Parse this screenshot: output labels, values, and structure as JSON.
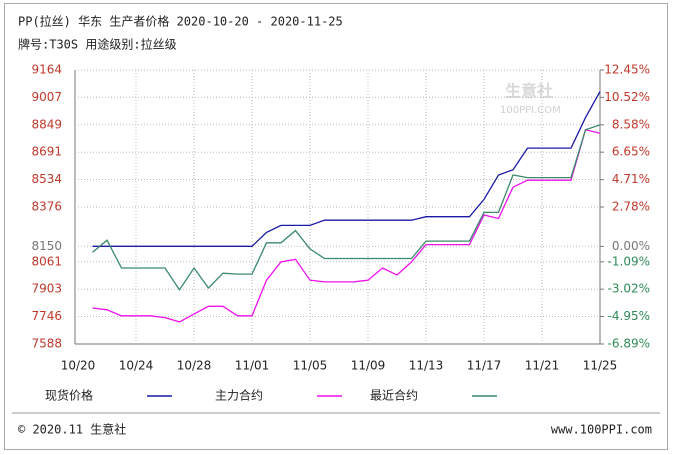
{
  "chart_data": {
    "type": "line",
    "title": "PP(拉丝) 华东 生产者价格 2020-10-20 - 2020-11-25",
    "subtitle": "牌号:T30S 用途级别:拉丝级",
    "watermark": "生意社",
    "watermark_url": "100PPI.COM",
    "footer_left": "© 2020.11 生意社",
    "footer_right": "www.100PPI.com",
    "categories": [
      "10/20",
      null,
      null,
      null,
      "10/24",
      null,
      null,
      null,
      "10/28",
      null,
      null,
      null,
      "11/01",
      null,
      null,
      null,
      "11/05",
      null,
      null,
      null,
      "11/09",
      null,
      null,
      null,
      "11/13",
      null,
      null,
      null,
      "11/17",
      null,
      null,
      null,
      "11/21",
      null,
      null,
      null,
      "11/25"
    ],
    "series": [
      {
        "name": "现货价格",
        "color": "#1a1aa6",
        "values": [
          null,
          8150,
          8150,
          8150,
          8150,
          8150,
          8150,
          8150,
          8150,
          8150,
          8150,
          8150,
          8150,
          8230,
          8270,
          8270,
          8270,
          8300,
          8300,
          8300,
          8300,
          8300,
          8300,
          8300,
          8320,
          8320,
          8320,
          8320,
          8420,
          8560,
          8590,
          8715,
          8715,
          8715,
          8715,
          8890,
          9040
        ]
      },
      {
        "name": "主力合约",
        "color": "#ee11ee",
        "values": [
          null,
          7795,
          7785,
          7750,
          7750,
          7750,
          7740,
          7715,
          7760,
          7805,
          7805,
          7750,
          7750,
          7955,
          8060,
          8075,
          7955,
          7945,
          7945,
          7945,
          7955,
          8025,
          7985,
          8060,
          8160,
          8160,
          8160,
          8160,
          8330,
          8310,
          8490,
          8530,
          8530,
          8530,
          8530,
          8820,
          8800
        ]
      },
      {
        "name": "最近合约",
        "color": "#3a8a6a",
        "values": [
          null,
          8115,
          8185,
          8025,
          8025,
          8025,
          8025,
          7900,
          8025,
          7910,
          7995,
          7990,
          7990,
          8170,
          8170,
          8240,
          8135,
          8080,
          8080,
          8080,
          8080,
          8080,
          8080,
          8080,
          8180,
          8180,
          8180,
          8180,
          8345,
          8345,
          8560,
          8545,
          8545,
          8545,
          8545,
          8820,
          8848
        ]
      }
    ],
    "ylim": [
      7588,
      9164
    ],
    "yticks": [
      9164,
      9007,
      8849,
      8691,
      8534,
      8376,
      8150,
      8061,
      7903,
      7746,
      7588
    ],
    "y2lim": [
      -6.89,
      12.45
    ],
    "y2ticks": [
      {
        "value": 12.45,
        "label": "12.45%"
      },
      {
        "value": 10.52,
        "label": "10.52%"
      },
      {
        "value": 8.58,
        "label": "8.58%"
      },
      {
        "value": 6.65,
        "label": "6.65%"
      },
      {
        "value": 4.71,
        "label": "4.71%"
      },
      {
        "value": 2.78,
        "label": "2.78%"
      },
      {
        "value": 0,
        "label": "0.00%"
      },
      {
        "value": -1.09,
        "label": "-1.09%"
      },
      {
        "value": -3.02,
        "label": "-3.02%"
      },
      {
        "value": -4.95,
        "label": "-4.95%"
      },
      {
        "value": -6.89,
        "label": "-6.89%"
      }
    ],
    "grid": true
  }
}
